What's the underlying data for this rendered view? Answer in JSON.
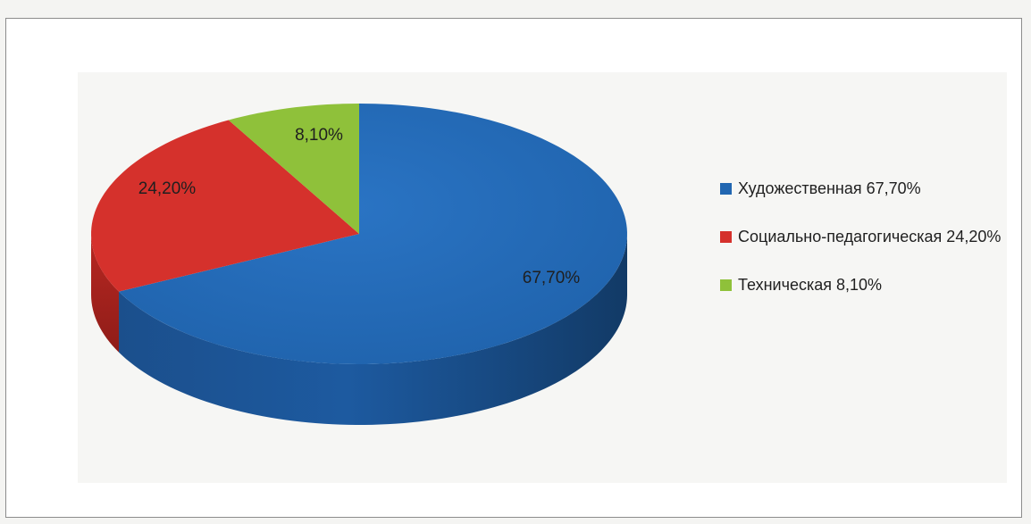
{
  "chart_data": {
    "type": "pie",
    "categories": [
      "Художественная",
      "Социально-педагогическая",
      "Техническая"
    ],
    "values": [
      67.7,
      24.2,
      8.1
    ],
    "data_labels": [
      "67,70%",
      "24,20%",
      "8,10%"
    ],
    "legend_labels": [
      "Художественная 67,70%",
      "Социально-педагогическая 24,20%",
      "Техническая 8,10%"
    ],
    "colors": [
      "#2166b1",
      "#d5312c",
      "#8fc13a"
    ],
    "legend_position": "right",
    "style": "3d"
  }
}
